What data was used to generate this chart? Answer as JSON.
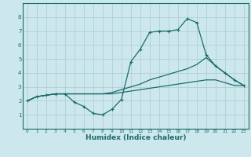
{
  "xlabel": "Humidex (Indice chaleur)",
  "bg_color": "#cde8ec",
  "grid_color": "#aecfd4",
  "line_color": "#1a6b6b",
  "xlim": [
    -0.5,
    23.5
  ],
  "ylim": [
    0,
    9
  ],
  "xticks": [
    0,
    1,
    2,
    3,
    4,
    5,
    6,
    7,
    8,
    9,
    10,
    11,
    12,
    13,
    14,
    15,
    16,
    17,
    18,
    19,
    20,
    21,
    22,
    23
  ],
  "yticks": [
    1,
    2,
    3,
    4,
    5,
    6,
    7,
    8
  ],
  "line1_x": [
    0,
    1,
    2,
    3,
    4,
    5,
    6,
    7,
    8,
    9,
    10,
    11,
    12,
    13,
    14,
    15,
    16,
    17,
    18,
    19,
    20,
    21,
    22,
    23
  ],
  "line1_y": [
    2.0,
    2.3,
    2.4,
    2.5,
    2.5,
    1.9,
    1.6,
    1.1,
    1.0,
    1.4,
    2.1,
    4.8,
    5.7,
    6.9,
    7.0,
    7.0,
    7.1,
    7.9,
    7.6,
    5.3,
    4.5,
    4.0,
    3.5,
    3.1
  ],
  "line2_x": [
    0,
    1,
    2,
    3,
    4,
    5,
    6,
    7,
    8,
    9,
    10,
    11,
    12,
    13,
    14,
    15,
    16,
    17,
    18,
    19,
    20,
    21,
    22,
    23
  ],
  "line2_y": [
    2.0,
    2.3,
    2.4,
    2.5,
    2.5,
    2.5,
    2.5,
    2.5,
    2.5,
    2.6,
    2.8,
    3.0,
    3.2,
    3.5,
    3.7,
    3.9,
    4.1,
    4.3,
    4.6,
    5.1,
    4.5,
    4.0,
    3.5,
    3.1
  ],
  "line3_x": [
    0,
    1,
    2,
    3,
    4,
    5,
    6,
    7,
    8,
    9,
    10,
    11,
    12,
    13,
    14,
    15,
    16,
    17,
    18,
    19,
    20,
    21,
    22,
    23
  ],
  "line3_y": [
    2.0,
    2.3,
    2.4,
    2.5,
    2.5,
    2.5,
    2.5,
    2.5,
    2.5,
    2.5,
    2.6,
    2.7,
    2.8,
    2.9,
    3.0,
    3.1,
    3.2,
    3.3,
    3.4,
    3.5,
    3.5,
    3.3,
    3.1,
    3.1
  ]
}
